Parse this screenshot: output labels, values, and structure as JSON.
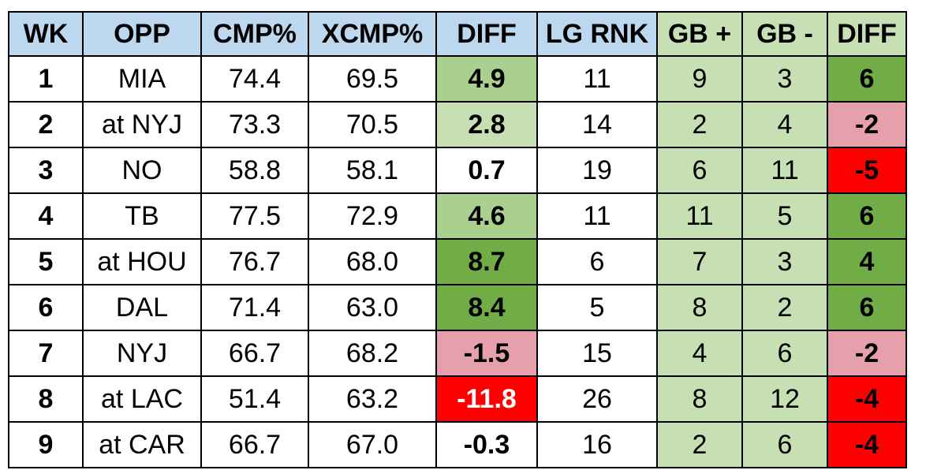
{
  "colors": {
    "header_blue": "#bdd7ee",
    "white": "#ffffff",
    "light_green": "#c6e0b4",
    "mid_green": "#a9d08e",
    "dark_green": "#70ad47",
    "pink": "#e6a0ab",
    "red": "#ff0000"
  },
  "table": {
    "columns": [
      {
        "key": "wk",
        "label": "WK",
        "width": 94
      },
      {
        "key": "opp",
        "label": "OPP",
        "width": 150
      },
      {
        "key": "cmp",
        "label": "CMP%",
        "width": 136
      },
      {
        "key": "xcmp",
        "label": "XCMP%",
        "width": 162
      },
      {
        "key": "diff",
        "label": "DIFF",
        "width": 128
      },
      {
        "key": "rnk",
        "label": "LG RNK",
        "width": 152
      },
      {
        "key": "gbp",
        "label": "GB +",
        "width": 108
      },
      {
        "key": "gbm",
        "label": "GB -",
        "width": 108
      },
      {
        "key": "gbdiff",
        "label": "DIFF",
        "width": 100
      }
    ],
    "header_fill": [
      "header_blue",
      "header_blue",
      "header_blue",
      "header_blue",
      "header_blue",
      "header_blue",
      "light_green",
      "light_green",
      "light_green"
    ],
    "rows": [
      {
        "wk": "1",
        "opp": "MIA",
        "cmp": "74.4",
        "xcmp": "69.5",
        "diff": "4.9",
        "rnk": "11",
        "gbp": "9",
        "gbm": "3",
        "gbdiff": "6",
        "fill": {
          "diff": "mid_green",
          "gbp": "light_green",
          "gbm": "light_green",
          "gbdiff": "dark_green"
        }
      },
      {
        "wk": "2",
        "opp": "at NYJ",
        "cmp": "73.3",
        "xcmp": "70.5",
        "diff": "2.8",
        "rnk": "14",
        "gbp": "2",
        "gbm": "4",
        "gbdiff": "-2",
        "fill": {
          "diff": "light_green",
          "gbp": "light_green",
          "gbm": "light_green",
          "gbdiff": "pink"
        }
      },
      {
        "wk": "3",
        "opp": "NO",
        "cmp": "58.8",
        "xcmp": "58.1",
        "diff": "0.7",
        "rnk": "19",
        "gbp": "6",
        "gbm": "11",
        "gbdiff": "-5",
        "fill": {
          "diff": "white",
          "gbp": "light_green",
          "gbm": "light_green",
          "gbdiff": "red"
        }
      },
      {
        "wk": "4",
        "opp": "TB",
        "cmp": "77.5",
        "xcmp": "72.9",
        "diff": "4.6",
        "rnk": "11",
        "gbp": "11",
        "gbm": "5",
        "gbdiff": "6",
        "fill": {
          "diff": "mid_green",
          "gbp": "light_green",
          "gbm": "light_green",
          "gbdiff": "dark_green"
        }
      },
      {
        "wk": "5",
        "opp": "at HOU",
        "cmp": "76.7",
        "xcmp": "68.0",
        "diff": "8.7",
        "rnk": "6",
        "gbp": "7",
        "gbm": "3",
        "gbdiff": "4",
        "fill": {
          "diff": "dark_green",
          "gbp": "light_green",
          "gbm": "light_green",
          "gbdiff": "dark_green"
        }
      },
      {
        "wk": "6",
        "opp": "DAL",
        "cmp": "71.4",
        "xcmp": "63.0",
        "diff": "8.4",
        "rnk": "5",
        "gbp": "8",
        "gbm": "2",
        "gbdiff": "6",
        "fill": {
          "diff": "dark_green",
          "gbp": "light_green",
          "gbm": "light_green",
          "gbdiff": "dark_green"
        }
      },
      {
        "wk": "7",
        "opp": "NYJ",
        "cmp": "66.7",
        "xcmp": "68.2",
        "diff": "-1.5",
        "rnk": "15",
        "gbp": "4",
        "gbm": "6",
        "gbdiff": "-2",
        "fill": {
          "diff": "pink",
          "gbp": "light_green",
          "gbm": "light_green",
          "gbdiff": "pink"
        }
      },
      {
        "wk": "8",
        "opp": "at LAC",
        "cmp": "51.4",
        "xcmp": "63.2",
        "diff": "-11.8",
        "rnk": "26",
        "gbp": "8",
        "gbm": "12",
        "gbdiff": "-4",
        "fill": {
          "diff": "red",
          "gbp": "light_green",
          "gbm": "light_green",
          "gbdiff": "red"
        }
      },
      {
        "wk": "9",
        "opp": "at CAR",
        "cmp": "66.7",
        "xcmp": "67.0",
        "diff": "-0.3",
        "rnk": "16",
        "gbp": "2",
        "gbm": "6",
        "gbdiff": "-4",
        "fill": {
          "diff": "white",
          "gbp": "light_green",
          "gbm": "light_green",
          "gbdiff": "red"
        }
      }
    ]
  }
}
